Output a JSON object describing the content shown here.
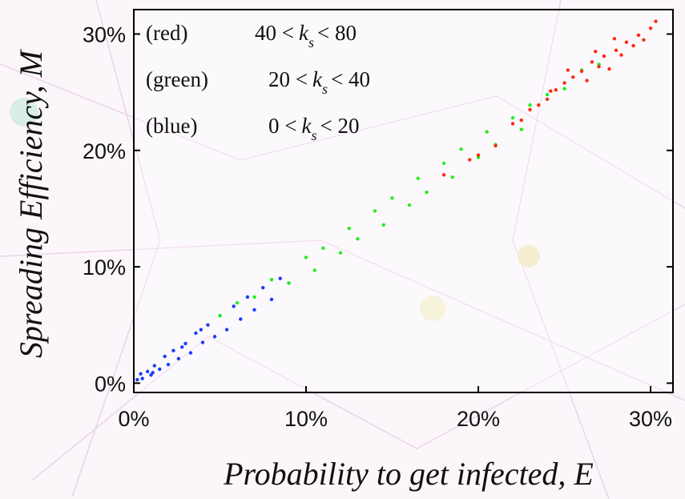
{
  "chart_data": {
    "type": "scatter",
    "x_label": "Probability to get infected, E",
    "y_label": "Spreading Efficiency, M",
    "xlim": [
      0,
      31.3
    ],
    "ylim": [
      -0.8,
      32.1
    ],
    "xticks": [
      {
        "value": 0,
        "label": "0%"
      },
      {
        "value": 10,
        "label": "10%"
      },
      {
        "value": 20,
        "label": "20%"
      },
      {
        "value": 30,
        "label": "30%"
      }
    ],
    "yticks": [
      {
        "value": 0,
        "label": "0%"
      },
      {
        "value": 10,
        "label": "10%"
      },
      {
        "value": 20,
        "label": "20%"
      },
      {
        "value": 30,
        "label": "30%"
      }
    ],
    "series": [
      {
        "name": "(red)",
        "color": "#ff2a10",
        "condition": {
          "low": "40 <",
          "symbol": "k",
          "subscript": "s",
          "high": "< 80"
        },
        "x": [
          18,
          19.5,
          20,
          21,
          22,
          22.5,
          23,
          23.5,
          24,
          24.5,
          25,
          25.5,
          26,
          26.3,
          26.6,
          27,
          27.3,
          27.6,
          28,
          28.3,
          28.6,
          29,
          29.3,
          29.6,
          30,
          30.3,
          25.2,
          26.8,
          24.2,
          27.9
        ],
        "values": [
          17.9,
          19.2,
          19.6,
          20.4,
          22.3,
          22.6,
          23.5,
          23.9,
          24.4,
          25.2,
          25.8,
          26.3,
          26.8,
          26,
          27.6,
          27.2,
          28.1,
          27,
          28.6,
          28.2,
          29.3,
          29,
          29.9,
          29.5,
          30.5,
          31.1,
          26.9,
          28.5,
          25.1,
          29.6
        ]
      },
      {
        "name": "(green)",
        "color": "#22ee22",
        "condition": {
          "low": "20 <",
          "symbol": "k",
          "subscript": "s",
          "high": "< 40"
        },
        "x": [
          5,
          6,
          7,
          8,
          9,
          10,
          10.5,
          11,
          12,
          12.5,
          13,
          14,
          14.5,
          15,
          16,
          16.5,
          17,
          18,
          18.5,
          19,
          20,
          20.5,
          21,
          22,
          22.5,
          23,
          24,
          25,
          26,
          27
        ],
        "values": [
          5.8,
          6.9,
          7.4,
          8.9,
          8.6,
          10.8,
          9.7,
          11.6,
          11.2,
          13.3,
          12.4,
          14.8,
          13.6,
          15.9,
          15.3,
          17.6,
          16.4,
          18.9,
          17.7,
          20.1,
          19.4,
          21.6,
          20.5,
          22.8,
          21.8,
          23.9,
          24.8,
          25.3,
          26.9,
          27.4
        ]
      },
      {
        "name": "(blue)",
        "color": "#1c3cff",
        "condition": {
          "low": "0 <",
          "symbol": "k",
          "subscript": "s",
          "high": "< 20"
        },
        "x": [
          0.2,
          0.5,
          0.8,
          1,
          1.2,
          1.5,
          1.8,
          2,
          2.3,
          2.6,
          3,
          3.3,
          3.6,
          4,
          4.3,
          4.7,
          5,
          5.4,
          5.8,
          6.2,
          6.6,
          7,
          7.5,
          8,
          8.5,
          9,
          0.4,
          1.1,
          2.8,
          3.9
        ],
        "values": [
          0.3,
          0.4,
          1,
          0.7,
          1.5,
          1.2,
          2.3,
          1.6,
          2.8,
          2.1,
          3.4,
          2.6,
          4.3,
          3.5,
          5,
          4,
          5.8,
          4.6,
          6.6,
          5.5,
          7.4,
          6.3,
          8.2,
          7.2,
          9,
          8.6,
          0.8,
          0.9,
          3.1,
          4.6
        ]
      }
    ]
  }
}
